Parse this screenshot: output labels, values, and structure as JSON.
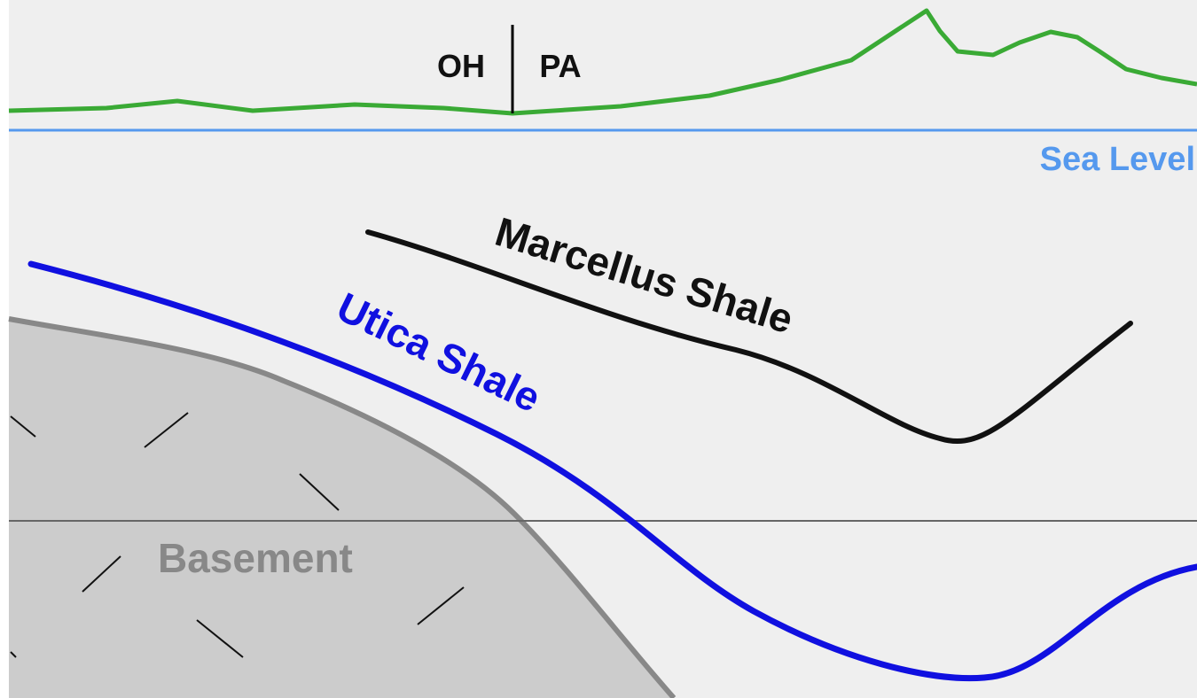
{
  "labels": {
    "state_left": "OH",
    "state_right": "PA",
    "sea_level": "Sea Level",
    "marcellus": "Marcellus Shale",
    "utica": "Utica Shale",
    "basement": "Basement"
  },
  "colors": {
    "background": "#efefef",
    "surface_line": "#3aaa35",
    "sea_level": "#5599ee",
    "marcellus": "#111111",
    "utica": "#1010e0",
    "basement_fill": "#cccccc",
    "basement_edge": "#888888",
    "reference_line": "#666666",
    "basement_text": "#888888"
  }
}
